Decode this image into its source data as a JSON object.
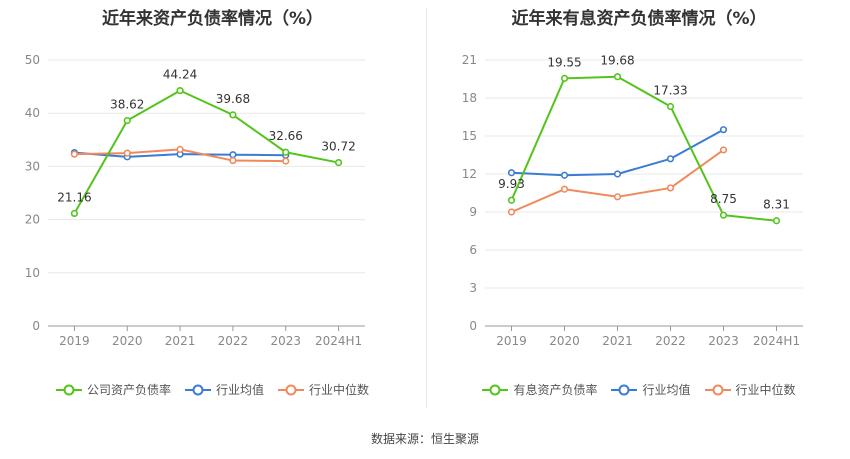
{
  "chart_data": [
    {
      "type": "line",
      "title": "近年来资产负债率情况（%）",
      "categories": [
        "2019",
        "2020",
        "2021",
        "2022",
        "2023",
        "2024H1"
      ],
      "ylim": [
        0,
        50
      ],
      "yticks": [
        0,
        10,
        20,
        30,
        40,
        50
      ],
      "grid": true,
      "legend_position": "bottom",
      "series": [
        {
          "name": "公司资产负债率",
          "color": "#52c41a",
          "values": [
            21.16,
            38.62,
            44.24,
            39.68,
            32.66,
            30.72
          ],
          "labels": [
            "21.16",
            "38.62",
            "44.24",
            "39.68",
            "32.66",
            "30.72"
          ]
        },
        {
          "name": "行业均值",
          "color": "#3a7bd5",
          "values": [
            32.6,
            31.8,
            32.3,
            32.2,
            32.1,
            null
          ]
        },
        {
          "name": "行业中位数",
          "color": "#f08a5d",
          "values": [
            32.3,
            32.5,
            33.2,
            31.1,
            31.0,
            null
          ]
        }
      ]
    },
    {
      "type": "line",
      "title": "近年来有息资产负债率情况（%）",
      "categories": [
        "2019",
        "2020",
        "2021",
        "2022",
        "2023",
        "2024H1"
      ],
      "ylim": [
        0,
        21
      ],
      "yticks": [
        0,
        3,
        6,
        9,
        12,
        15,
        18,
        21
      ],
      "grid": true,
      "legend_position": "bottom",
      "series": [
        {
          "name": "有息资产负债率",
          "color": "#52c41a",
          "values": [
            9.93,
            19.55,
            19.68,
            17.33,
            8.75,
            8.31
          ],
          "labels": [
            "9.93",
            "19.55",
            "19.68",
            "17.33",
            "8.75",
            "8.31"
          ]
        },
        {
          "name": "行业均值",
          "color": "#3a7bd5",
          "values": [
            12.1,
            11.9,
            12.0,
            13.2,
            15.5,
            null
          ]
        },
        {
          "name": "行业中位数",
          "color": "#f08a5d",
          "values": [
            9.0,
            10.8,
            10.2,
            10.9,
            13.9,
            null
          ]
        }
      ]
    }
  ],
  "source_text": "数据来源：恒生聚源"
}
